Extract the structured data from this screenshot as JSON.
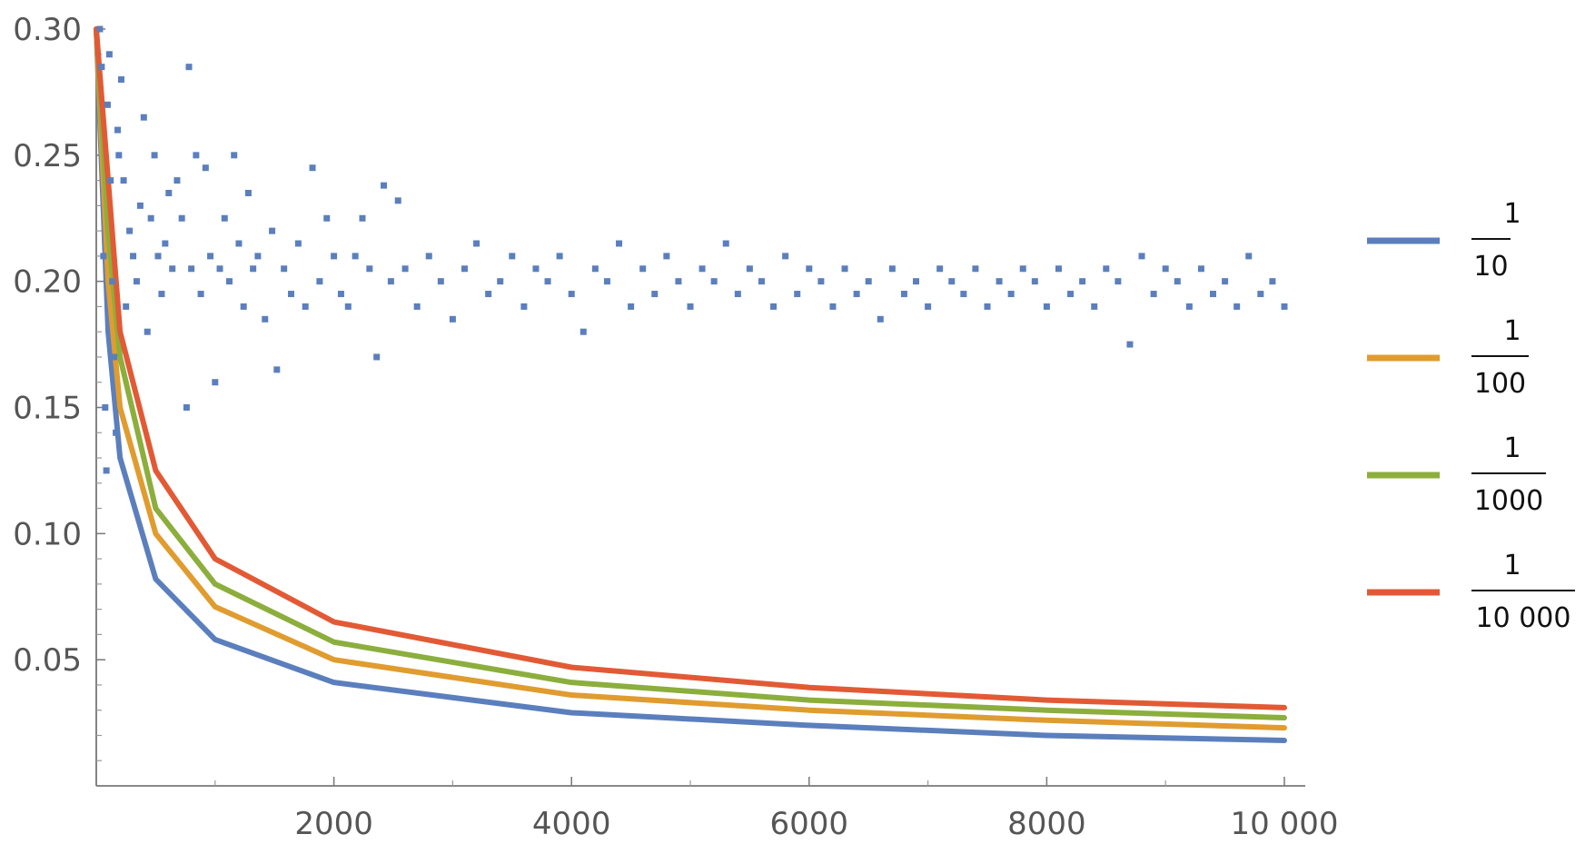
{
  "chart_data": {
    "type": "scatter",
    "title": "",
    "xlabel": "",
    "ylabel": "",
    "xlim": [
      0,
      10000
    ],
    "ylim": [
      0,
      0.3
    ],
    "grid": false,
    "legend_placement": "right",
    "x_ticks": [
      {
        "value": 2000,
        "label": "2000"
      },
      {
        "value": 4000,
        "label": "4000"
      },
      {
        "value": 6000,
        "label": "6000"
      },
      {
        "value": 8000,
        "label": "8000"
      },
      {
        "value": 10000,
        "label": "10 000"
      }
    ],
    "y_ticks": [
      {
        "value": 0.05,
        "label": "0.05"
      },
      {
        "value": 0.1,
        "label": "0.10"
      },
      {
        "value": 0.15,
        "label": "0.15"
      },
      {
        "value": 0.2,
        "label": "0.20"
      },
      {
        "value": 0.25,
        "label": "0.25"
      },
      {
        "value": 0.3,
        "label": "0.30"
      }
    ],
    "scatter_series": {
      "color": "#5b7fbd",
      "points": [
        [
          30,
          0.3
        ],
        [
          45,
          0.285
        ],
        [
          60,
          0.21
        ],
        [
          75,
          0.15
        ],
        [
          85,
          0.125
        ],
        [
          95,
          0.27
        ],
        [
          110,
          0.29
        ],
        [
          120,
          0.24
        ],
        [
          135,
          0.2
        ],
        [
          150,
          0.17
        ],
        [
          165,
          0.14
        ],
        [
          180,
          0.26
        ],
        [
          190,
          0.25
        ],
        [
          210,
          0.28
        ],
        [
          230,
          0.24
        ],
        [
          250,
          0.19
        ],
        [
          280,
          0.22
        ],
        [
          310,
          0.21
        ],
        [
          340,
          0.2
        ],
        [
          370,
          0.23
        ],
        [
          400,
          0.265
        ],
        [
          430,
          0.18
        ],
        [
          460,
          0.225
        ],
        [
          490,
          0.25
        ],
        [
          520,
          0.21
        ],
        [
          550,
          0.195
        ],
        [
          580,
          0.215
        ],
        [
          610,
          0.235
        ],
        [
          640,
          0.205
        ],
        [
          680,
          0.24
        ],
        [
          720,
          0.225
        ],
        [
          760,
          0.15
        ],
        [
          780,
          0.285
        ],
        [
          800,
          0.205
        ],
        [
          840,
          0.25
        ],
        [
          880,
          0.195
        ],
        [
          920,
          0.245
        ],
        [
          960,
          0.21
        ],
        [
          1000,
          0.16
        ],
        [
          1040,
          0.205
        ],
        [
          1080,
          0.225
        ],
        [
          1120,
          0.2
        ],
        [
          1160,
          0.25
        ],
        [
          1200,
          0.215
        ],
        [
          1240,
          0.19
        ],
        [
          1280,
          0.235
        ],
        [
          1320,
          0.205
        ],
        [
          1360,
          0.21
        ],
        [
          1420,
          0.185
        ],
        [
          1480,
          0.22
        ],
        [
          1520,
          0.165
        ],
        [
          1580,
          0.205
        ],
        [
          1640,
          0.195
        ],
        [
          1700,
          0.215
        ],
        [
          1760,
          0.19
        ],
        [
          1820,
          0.245
        ],
        [
          1880,
          0.2
        ],
        [
          1940,
          0.225
        ],
        [
          2000,
          0.21
        ],
        [
          2060,
          0.195
        ],
        [
          2120,
          0.19
        ],
        [
          2180,
          0.21
        ],
        [
          2240,
          0.225
        ],
        [
          2300,
          0.205
        ],
        [
          2360,
          0.17
        ],
        [
          2420,
          0.238
        ],
        [
          2480,
          0.2
        ],
        [
          2540,
          0.232
        ],
        [
          2600,
          0.205
        ],
        [
          2700,
          0.19
        ],
        [
          2800,
          0.21
        ],
        [
          2900,
          0.2
        ],
        [
          3000,
          0.185
        ],
        [
          3100,
          0.205
        ],
        [
          3200,
          0.215
        ],
        [
          3300,
          0.195
        ],
        [
          3400,
          0.2
        ],
        [
          3500,
          0.21
        ],
        [
          3600,
          0.19
        ],
        [
          3700,
          0.205
        ],
        [
          3800,
          0.2
        ],
        [
          3900,
          0.21
        ],
        [
          4000,
          0.195
        ],
        [
          4100,
          0.18
        ],
        [
          4200,
          0.205
        ],
        [
          4300,
          0.2
        ],
        [
          4400,
          0.215
        ],
        [
          4500,
          0.19
        ],
        [
          4600,
          0.205
        ],
        [
          4700,
          0.195
        ],
        [
          4800,
          0.21
        ],
        [
          4900,
          0.2
        ],
        [
          5000,
          0.19
        ],
        [
          5100,
          0.205
        ],
        [
          5200,
          0.2
        ],
        [
          5300,
          0.215
        ],
        [
          5400,
          0.195
        ],
        [
          5500,
          0.205
        ],
        [
          5600,
          0.2
        ],
        [
          5700,
          0.19
        ],
        [
          5800,
          0.21
        ],
        [
          5900,
          0.195
        ],
        [
          6000,
          0.205
        ],
        [
          6100,
          0.2
        ],
        [
          6200,
          0.19
        ],
        [
          6300,
          0.205
        ],
        [
          6400,
          0.195
        ],
        [
          6500,
          0.2
        ],
        [
          6600,
          0.185
        ],
        [
          6700,
          0.205
        ],
        [
          6800,
          0.195
        ],
        [
          6900,
          0.2
        ],
        [
          7000,
          0.19
        ],
        [
          7100,
          0.205
        ],
        [
          7200,
          0.2
        ],
        [
          7300,
          0.195
        ],
        [
          7400,
          0.205
        ],
        [
          7500,
          0.19
        ],
        [
          7600,
          0.2
        ],
        [
          7700,
          0.195
        ],
        [
          7800,
          0.205
        ],
        [
          7900,
          0.2
        ],
        [
          8000,
          0.19
        ],
        [
          8100,
          0.205
        ],
        [
          8200,
          0.195
        ],
        [
          8300,
          0.2
        ],
        [
          8400,
          0.19
        ],
        [
          8500,
          0.205
        ],
        [
          8600,
          0.2
        ],
        [
          8700,
          0.175
        ],
        [
          8800,
          0.21
        ],
        [
          8900,
          0.195
        ],
        [
          9000,
          0.205
        ],
        [
          9100,
          0.2
        ],
        [
          9200,
          0.19
        ],
        [
          9300,
          0.205
        ],
        [
          9400,
          0.195
        ],
        [
          9500,
          0.2
        ],
        [
          9600,
          0.19
        ],
        [
          9700,
          0.21
        ],
        [
          9800,
          0.195
        ],
        [
          9900,
          0.2
        ],
        [
          10000,
          0.19
        ]
      ]
    },
    "curve_series": [
      {
        "color": "#5b7fbd",
        "denominator": "10",
        "x": [
          0,
          100,
          200,
          500,
          1000,
          2000,
          4000,
          6000,
          8000,
          10000
        ],
        "y": [
          0.3,
          0.18,
          0.13,
          0.082,
          0.058,
          0.041,
          0.029,
          0.024,
          0.02,
          0.018
        ]
      },
      {
        "color": "#e09c2f",
        "denominator": "100",
        "x": [
          0,
          100,
          200,
          500,
          1000,
          2000,
          4000,
          6000,
          8000,
          10000
        ],
        "y": [
          0.3,
          0.2,
          0.15,
          0.1,
          0.071,
          0.05,
          0.036,
          0.03,
          0.026,
          0.023
        ]
      },
      {
        "color": "#8cae3d",
        "denominator": "1000",
        "x": [
          0,
          100,
          200,
          500,
          1000,
          2000,
          4000,
          6000,
          8000,
          10000
        ],
        "y": [
          0.3,
          0.22,
          0.17,
          0.11,
          0.08,
          0.057,
          0.041,
          0.034,
          0.03,
          0.027
        ]
      },
      {
        "color": "#e25a35",
        "denominator": "10 000",
        "x": [
          0,
          100,
          200,
          500,
          1000,
          2000,
          4000,
          6000,
          8000,
          10000
        ],
        "y": [
          0.3,
          0.24,
          0.18,
          0.125,
          0.09,
          0.065,
          0.047,
          0.039,
          0.034,
          0.031
        ]
      }
    ],
    "legend": [
      {
        "numerator": "1",
        "denominator": "10",
        "color": "#5b7fbd"
      },
      {
        "numerator": "1",
        "denominator": "100",
        "color": "#e09c2f"
      },
      {
        "numerator": "1",
        "denominator": "1000",
        "color": "#8cae3d"
      },
      {
        "numerator": "1",
        "denominator": "10 000",
        "color": "#e25a35"
      }
    ]
  }
}
